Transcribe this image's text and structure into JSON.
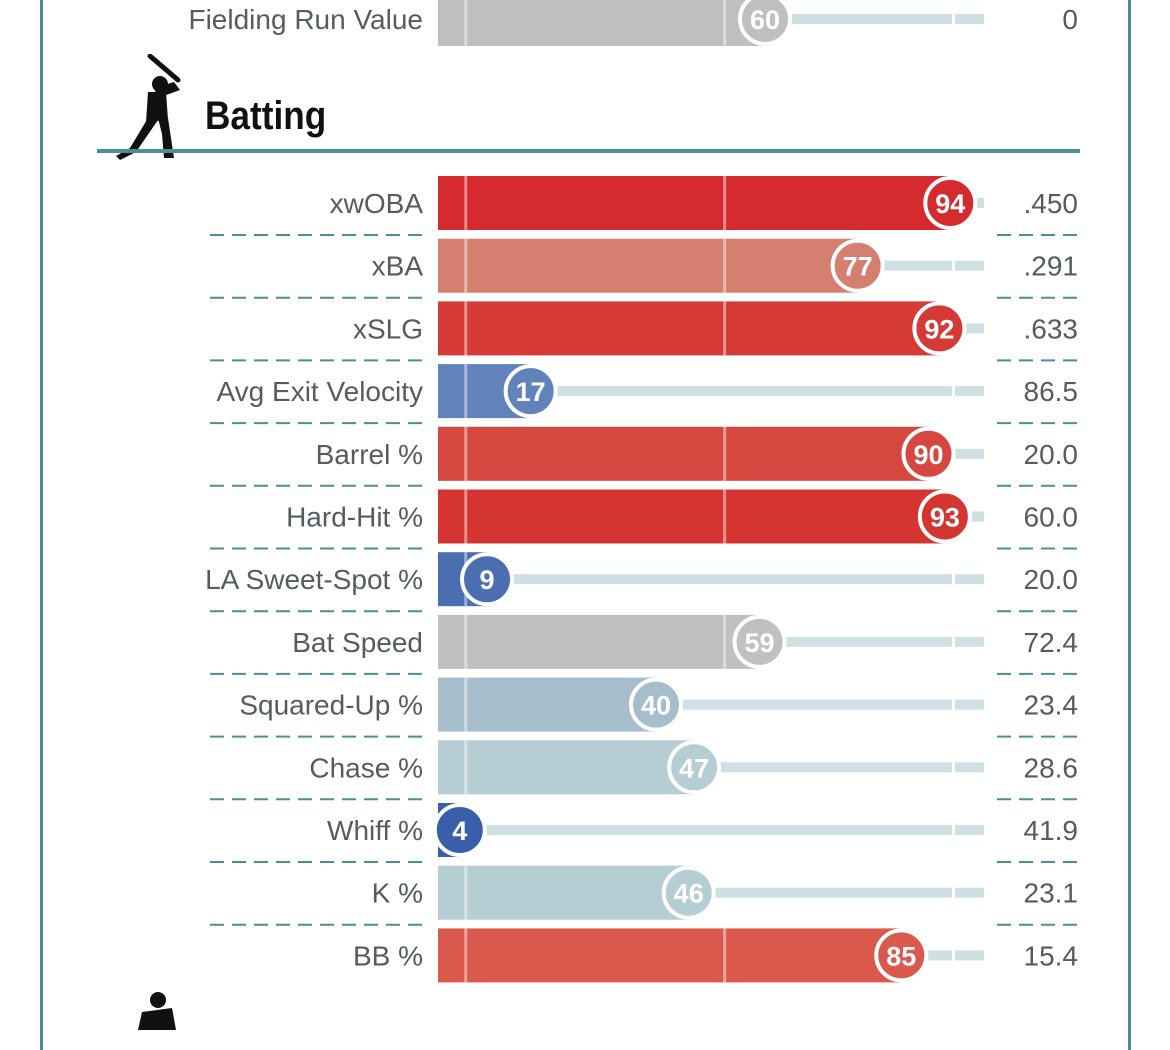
{
  "section": {
    "title": "Batting",
    "icon": "batter-silhouette-icon",
    "next_icon": "pitcher-silhouette-icon"
  },
  "chart_data": {
    "type": "bar",
    "orientation": "horizontal",
    "title": "Batting",
    "value_range": [
      0,
      100
    ],
    "top_row": {
      "label": "Fielding Run Value",
      "percentile": 60,
      "stat": "0",
      "color": "#bfbfbf"
    },
    "rows": [
      {
        "label": "xwOBA",
        "percentile": 94,
        "stat": ".450",
        "color": "#d52b2e"
      },
      {
        "label": "xBA",
        "percentile": 77,
        "stat": ".291",
        "color": "#d47f70"
      },
      {
        "label": "xSLG",
        "percentile": 92,
        "stat": ".633",
        "color": "#d53a37"
      },
      {
        "label": "Avg Exit Velocity",
        "percentile": 17,
        "stat": "86.5",
        "color": "#6182bb"
      },
      {
        "label": "Barrel %",
        "percentile": 90,
        "stat": "20.0",
        "color": "#d64740"
      },
      {
        "label": "Hard-Hit %",
        "percentile": 93,
        "stat": "60.0",
        "color": "#d53530"
      },
      {
        "label": "LA Sweet-Spot %",
        "percentile": 9,
        "stat": "20.0",
        "color": "#4b6eb1"
      },
      {
        "label": "Bat Speed",
        "percentile": 59,
        "stat": "72.4",
        "color": "#c0c0c0"
      },
      {
        "label": "Squared-Up %",
        "percentile": 40,
        "stat": "23.4",
        "color": "#a6bdcc"
      },
      {
        "label": "Chase %",
        "percentile": 47,
        "stat": "28.6",
        "color": "#b6ced3"
      },
      {
        "label": "Whiff %",
        "percentile": 4,
        "stat": "41.9",
        "color": "#3a5ea9"
      },
      {
        "label": "K %",
        "percentile": 46,
        "stat": "23.1",
        "color": "#b5ced4"
      },
      {
        "label": "BB %",
        "percentile": 85,
        "stat": "15.4",
        "color": "#d95a4c"
      }
    ]
  }
}
